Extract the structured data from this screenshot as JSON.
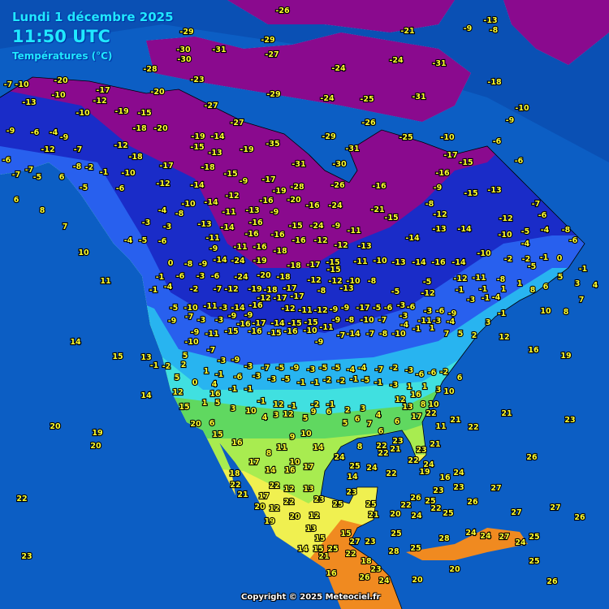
{
  "header": {
    "date": "Lundi 1 décembre 2025",
    "time": "11:50 UTC",
    "subtitle": "Températures (°C)"
  },
  "copyright": "Copyright © 2025 Meteociel.fr",
  "colors": {
    "ocean": "#0c5ec4",
    "very_cold": "#8a0a8e",
    "cold": "#1a2cc8",
    "cool": "#2860ee",
    "mild": "#28b4f0",
    "cyan": "#40e0e0",
    "green": "#60d860",
    "yellow": "#f0f050",
    "orange": "#f08a20",
    "label": "#ffff30"
  },
  "stations": [
    "-26",
    "-29",
    "-30",
    "-30",
    "-28",
    "-23",
    "-31",
    "-29",
    "-27",
    "-21",
    "-9",
    "-13",
    "-8",
    "-24",
    "-31",
    "-24",
    "-24",
    "-25",
    "-31",
    "-18",
    "-7",
    "-10",
    "-20",
    "-10",
    "-13",
    "-17",
    "-12",
    "-20",
    "-27",
    "-29",
    "-29",
    "-26",
    "-25",
    "-10",
    "-10",
    "-9",
    "-10",
    "-19",
    "-15",
    "-18",
    "-20",
    "-27",
    "-19",
    "-14",
    "-9",
    "-6",
    "-4",
    "-9",
    "-12",
    "-7",
    "-12",
    "-15",
    "-13",
    "-19",
    "-35",
    "-31",
    "-17",
    "-15",
    "-6",
    "-6",
    "-6",
    "-7",
    "-8",
    "-2",
    "-1",
    "-10",
    "-17",
    "-18",
    "-18",
    "-15",
    "-17",
    "-31",
    "-30",
    "-16",
    "-15",
    "-13",
    "-9",
    "-7",
    "-5",
    "6",
    "-12",
    "-14",
    "-9",
    "-19",
    "-28",
    "-26",
    "-16",
    "-7",
    "6",
    "8",
    "-5",
    "-6",
    "-10",
    "-14",
    "-12",
    "-16",
    "-20",
    "-16",
    "-24",
    "-21",
    "-15",
    "-8",
    "-12",
    "-12",
    "-6",
    "7",
    "-4",
    "-8",
    "-13",
    "-11",
    "-13",
    "-16",
    "-9",
    "-15",
    "-24",
    "-9",
    "-11",
    "-13",
    "-14",
    "-10",
    "-5",
    "-4",
    "-8",
    "-3",
    "-3",
    "-11",
    "-14",
    "-16",
    "-16",
    "-16",
    "-12",
    "-12",
    "-13",
    "-14",
    "-4",
    "-6",
    "10",
    "-4",
    "-5",
    "-6",
    "-9",
    "-11",
    "-16",
    "-18",
    "-10",
    "-16",
    "-14",
    "-10",
    "-2",
    "-2",
    "-1",
    "0",
    "-1",
    "11",
    "0",
    "-8",
    "-9",
    "-14",
    "-24",
    "-19",
    "-18",
    "-17",
    "-15",
    "-15",
    "-11",
    "-13",
    "-14",
    "-5",
    "5",
    "-1",
    "-6",
    "-3",
    "-6",
    "-24",
    "-20",
    "-18",
    "-17",
    "-12",
    "-12",
    "-10",
    "-8",
    "-5",
    "-12",
    "-11",
    "-8",
    "1",
    "3",
    "4",
    "-1",
    "-4",
    "-2",
    "-7",
    "-12",
    "-19",
    "-18",
    "-17",
    "-8",
    "-13",
    "-5",
    "-12",
    "-1",
    "-1",
    "1",
    "8",
    "6",
    "14",
    "15",
    "13",
    "14",
    "20",
    "19",
    "20",
    "22",
    "23",
    "16",
    "19",
    "12",
    "10",
    "8",
    "7",
    "21",
    "23",
    "21",
    "22",
    "26",
    "27",
    "27",
    "27",
    "26",
    "25",
    "25",
    "26",
    "24",
    "23",
    "23",
    "25",
    "26",
    "22",
    "24",
    "22",
    "24",
    "22",
    "25",
    "26",
    "25",
    "23",
    "25",
    "21",
    "20",
    "25",
    "23",
    "25",
    "23",
    "13",
    "12",
    "22",
    "12",
    "19",
    "22",
    "20",
    "12",
    "13",
    "15",
    "15",
    "25",
    "22",
    "18",
    "23",
    "24",
    "16",
    "26",
    "20",
    "28",
    "25",
    "28",
    "20",
    "24",
    "24",
    "27",
    "24",
    "14",
    "15",
    "21",
    "27",
    "20",
    "22",
    "21",
    "17",
    "18",
    "17",
    "14",
    "16",
    "10",
    "8",
    "11",
    "17",
    "9",
    "10",
    "14",
    "24",
    "14",
    "8",
    "22",
    "22",
    "21",
    "23",
    "23",
    "21",
    "22",
    "19",
    "24",
    "16",
    "16",
    "15",
    "20",
    "6",
    "16",
    "12",
    "15",
    "1",
    "5",
    "3",
    "10",
    "4",
    "12",
    "12",
    "5",
    "9",
    "6",
    "5",
    "6",
    "7",
    "6",
    "6",
    "17",
    "22",
    "11",
    "10",
    "8",
    "16",
    "13",
    "12",
    "4",
    "3",
    "2",
    "-1",
    "-2",
    "-1",
    "3",
    "-1",
    "-1",
    "-1",
    "4",
    "0",
    "5",
    "2",
    "-2",
    "-1",
    "5",
    "1",
    "-1",
    "-6",
    "-3",
    "-3",
    "-5",
    "-1",
    "-1",
    "-2",
    "-2",
    "-1",
    "-5",
    "-1",
    "-3",
    "1",
    "1",
    "3",
    "10",
    "6",
    "-2",
    "-6",
    "-6",
    "-3",
    "-2",
    "-7",
    "-4",
    "-4",
    "-5",
    "-5",
    "-3",
    "-9",
    "-5",
    "-7",
    "-3",
    "-9",
    "-3",
    "-7",
    "-10",
    "-9",
    "-11",
    "-15",
    "-16",
    "-16",
    "-15",
    "-16",
    "-10",
    "-9",
    "-7",
    "-14",
    "-7",
    "-8",
    "-10",
    "-4",
    "-1",
    "1",
    "7",
    "5",
    "2",
    "3",
    "-1",
    "-4",
    "-3",
    "-11",
    "-3",
    "-7",
    "-10",
    "-8",
    "-9",
    "-11",
    "-15",
    "-15",
    "-14",
    "-17",
    "-9",
    "-9",
    "-3",
    "-3",
    "-7",
    "-9",
    "-5",
    "-10",
    "-11",
    "-3",
    "-14",
    "-16",
    "-12",
    "-17",
    "-12",
    "-11",
    "-12",
    "-9",
    "-9",
    "-17",
    "-5",
    "-6",
    "-3",
    "-6",
    "-3",
    "-6",
    "-9",
    "-3",
    "-1",
    "-4"
  ]
}
